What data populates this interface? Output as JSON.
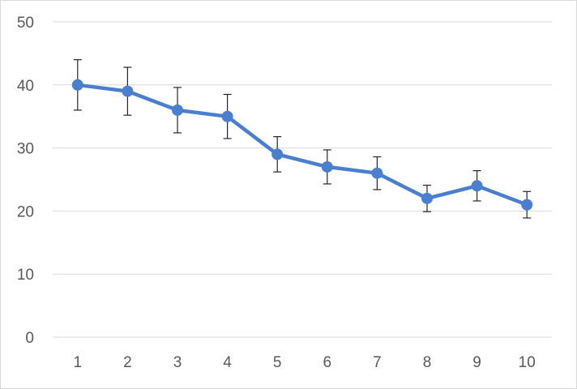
{
  "chart_data": {
    "type": "line",
    "title": "",
    "xlabel": "",
    "ylabel": "",
    "categories": [
      "1",
      "2",
      "3",
      "4",
      "5",
      "6",
      "7",
      "8",
      "9",
      "10"
    ],
    "series": [
      {
        "values": [
          40,
          39,
          36,
          35,
          29,
          27,
          26,
          22,
          24,
          21
        ],
        "error": [
          4,
          3.8,
          3.6,
          3.5,
          2.8,
          2.7,
          2.6,
          2.1,
          2.4,
          2.1
        ],
        "color": "#4a7fd0",
        "marker": "circle"
      }
    ],
    "ylim": [
      0,
      50
    ],
    "yticks": [
      "0",
      "10",
      "20",
      "30",
      "40",
      "50"
    ],
    "grid": true,
    "legend": "none",
    "error_bars": true
  }
}
